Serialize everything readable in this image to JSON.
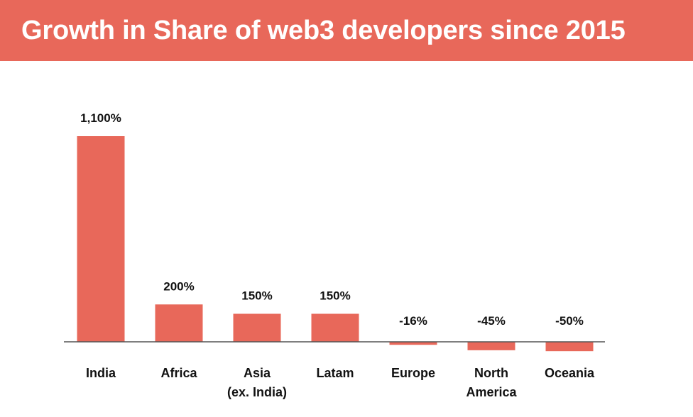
{
  "header": {
    "title": "Growth in Share of web3 developers since 2015"
  },
  "colors": {
    "banner": "#E8685A",
    "bar": "#E8685A",
    "axis": "#555555",
    "text": "#111111"
  },
  "chart_data": {
    "type": "bar",
    "title": "Growth in Share of web3 developers since 2015",
    "xlabel": "",
    "ylabel": "",
    "categories": [
      [
        "India"
      ],
      [
        "Africa"
      ],
      [
        "Asia",
        "(ex. India)"
      ],
      [
        "Latam"
      ],
      [
        "Europe"
      ],
      [
        "North",
        "America"
      ],
      [
        "Oceania"
      ]
    ],
    "values": [
      1100,
      200,
      150,
      150,
      -16,
      -45,
      -50
    ],
    "value_labels": [
      "1,100%",
      "200%",
      "150%",
      "150%",
      "-16%",
      "-45%",
      "-50%"
    ],
    "unit": "%",
    "grid": false,
    "legend": "none"
  }
}
